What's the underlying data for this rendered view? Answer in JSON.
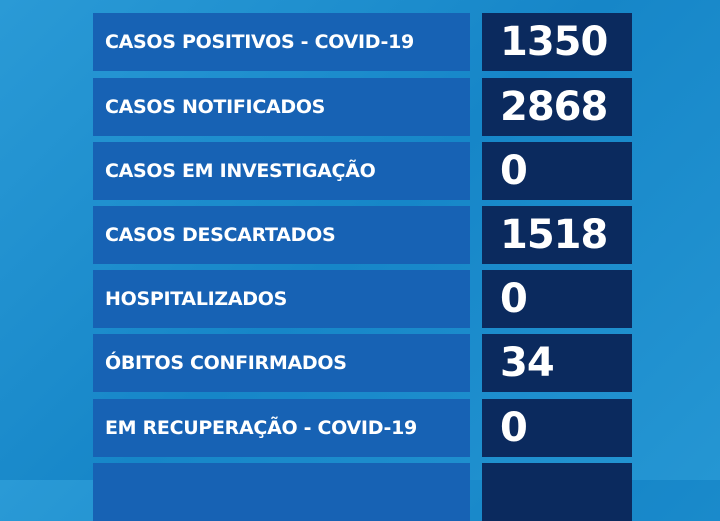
{
  "colors": {
    "background": "#1a8ccd",
    "label_box": "#1762b4",
    "value_box": "#0b2a5e",
    "text": "#ffffff"
  },
  "rows": [
    {
      "label": "CASOS POSITIVOS - COVID-19",
      "value": "1350"
    },
    {
      "label": "CASOS NOTIFICADOS",
      "value": "2868"
    },
    {
      "label": "CASOS EM INVESTIGAÇÃO",
      "value": "0"
    },
    {
      "label": "CASOS DESCARTADOS",
      "value": "1518"
    },
    {
      "label": "HOSPITALIZADOS",
      "value": "0"
    },
    {
      "label": "ÓBITOS CONFIRMADOS",
      "value": "34"
    },
    {
      "label": "EM RECUPERAÇÃO - COVID-19",
      "value": "0"
    },
    {
      "label": "",
      "value": ""
    }
  ]
}
